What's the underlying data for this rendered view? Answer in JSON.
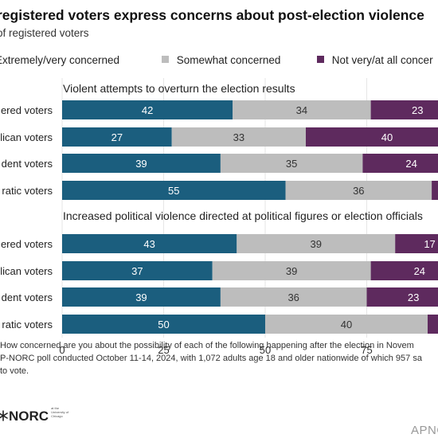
{
  "title": "registered voters express concerns about post-election violence",
  "subtitle": "of registered voters",
  "legend": [
    {
      "label": "Extremely/very concerned",
      "color": "#1b5e7e"
    },
    {
      "label": "Somewhat concerned",
      "color": "#bdbdbd"
    },
    {
      "label": "Not very/at all concer",
      "color": "#5e2a5e"
    }
  ],
  "chart_data": {
    "type": "bar",
    "orientation": "horizontal",
    "stacked": true,
    "xlim": [
      0,
      100
    ],
    "x_ticks": [
      "0",
      "25",
      "50",
      "75"
    ],
    "grid": true,
    "series_names": [
      "Extremely/very concerned",
      "Somewhat concerned",
      "Not very/at all concerned"
    ],
    "colors": [
      "#1b5e7e",
      "#bdbdbd",
      "#5e2a5e"
    ],
    "panels": [
      {
        "title": "Violent attempts to overturn the election results",
        "rows": [
          {
            "label": "ered voters",
            "values": [
              42,
              34,
              23
            ]
          },
          {
            "label": "lican voters",
            "values": [
              27,
              33,
              40
            ]
          },
          {
            "label": "dent voters",
            "values": [
              39,
              35,
              24
            ]
          },
          {
            "label": "ratic voters",
            "values": [
              55,
              36,
              null
            ]
          }
        ]
      },
      {
        "title": "Increased political violence directed at political figures or election officials",
        "rows": [
          {
            "label": "ered voters",
            "values": [
              43,
              39,
              17
            ]
          },
          {
            "label": "lican voters",
            "values": [
              37,
              39,
              24
            ]
          },
          {
            "label": "dent voters",
            "values": [
              39,
              36,
              23
            ]
          },
          {
            "label": "ratic voters",
            "values": [
              50,
              40,
              null
            ]
          }
        ]
      }
    ]
  },
  "note": {
    "lines": [
      "How concerned are you about the possibility of each of the following happening after the election in Novem",
      "P-NORC poll conducted October 11-14, 2024, with 1,072 adults age 18 and older nationwide of which 957 sa",
      "to vote."
    ]
  },
  "logo": {
    "text": "NORC",
    "small_text": "at the University of Chicago"
  },
  "brand": "APNO"
}
